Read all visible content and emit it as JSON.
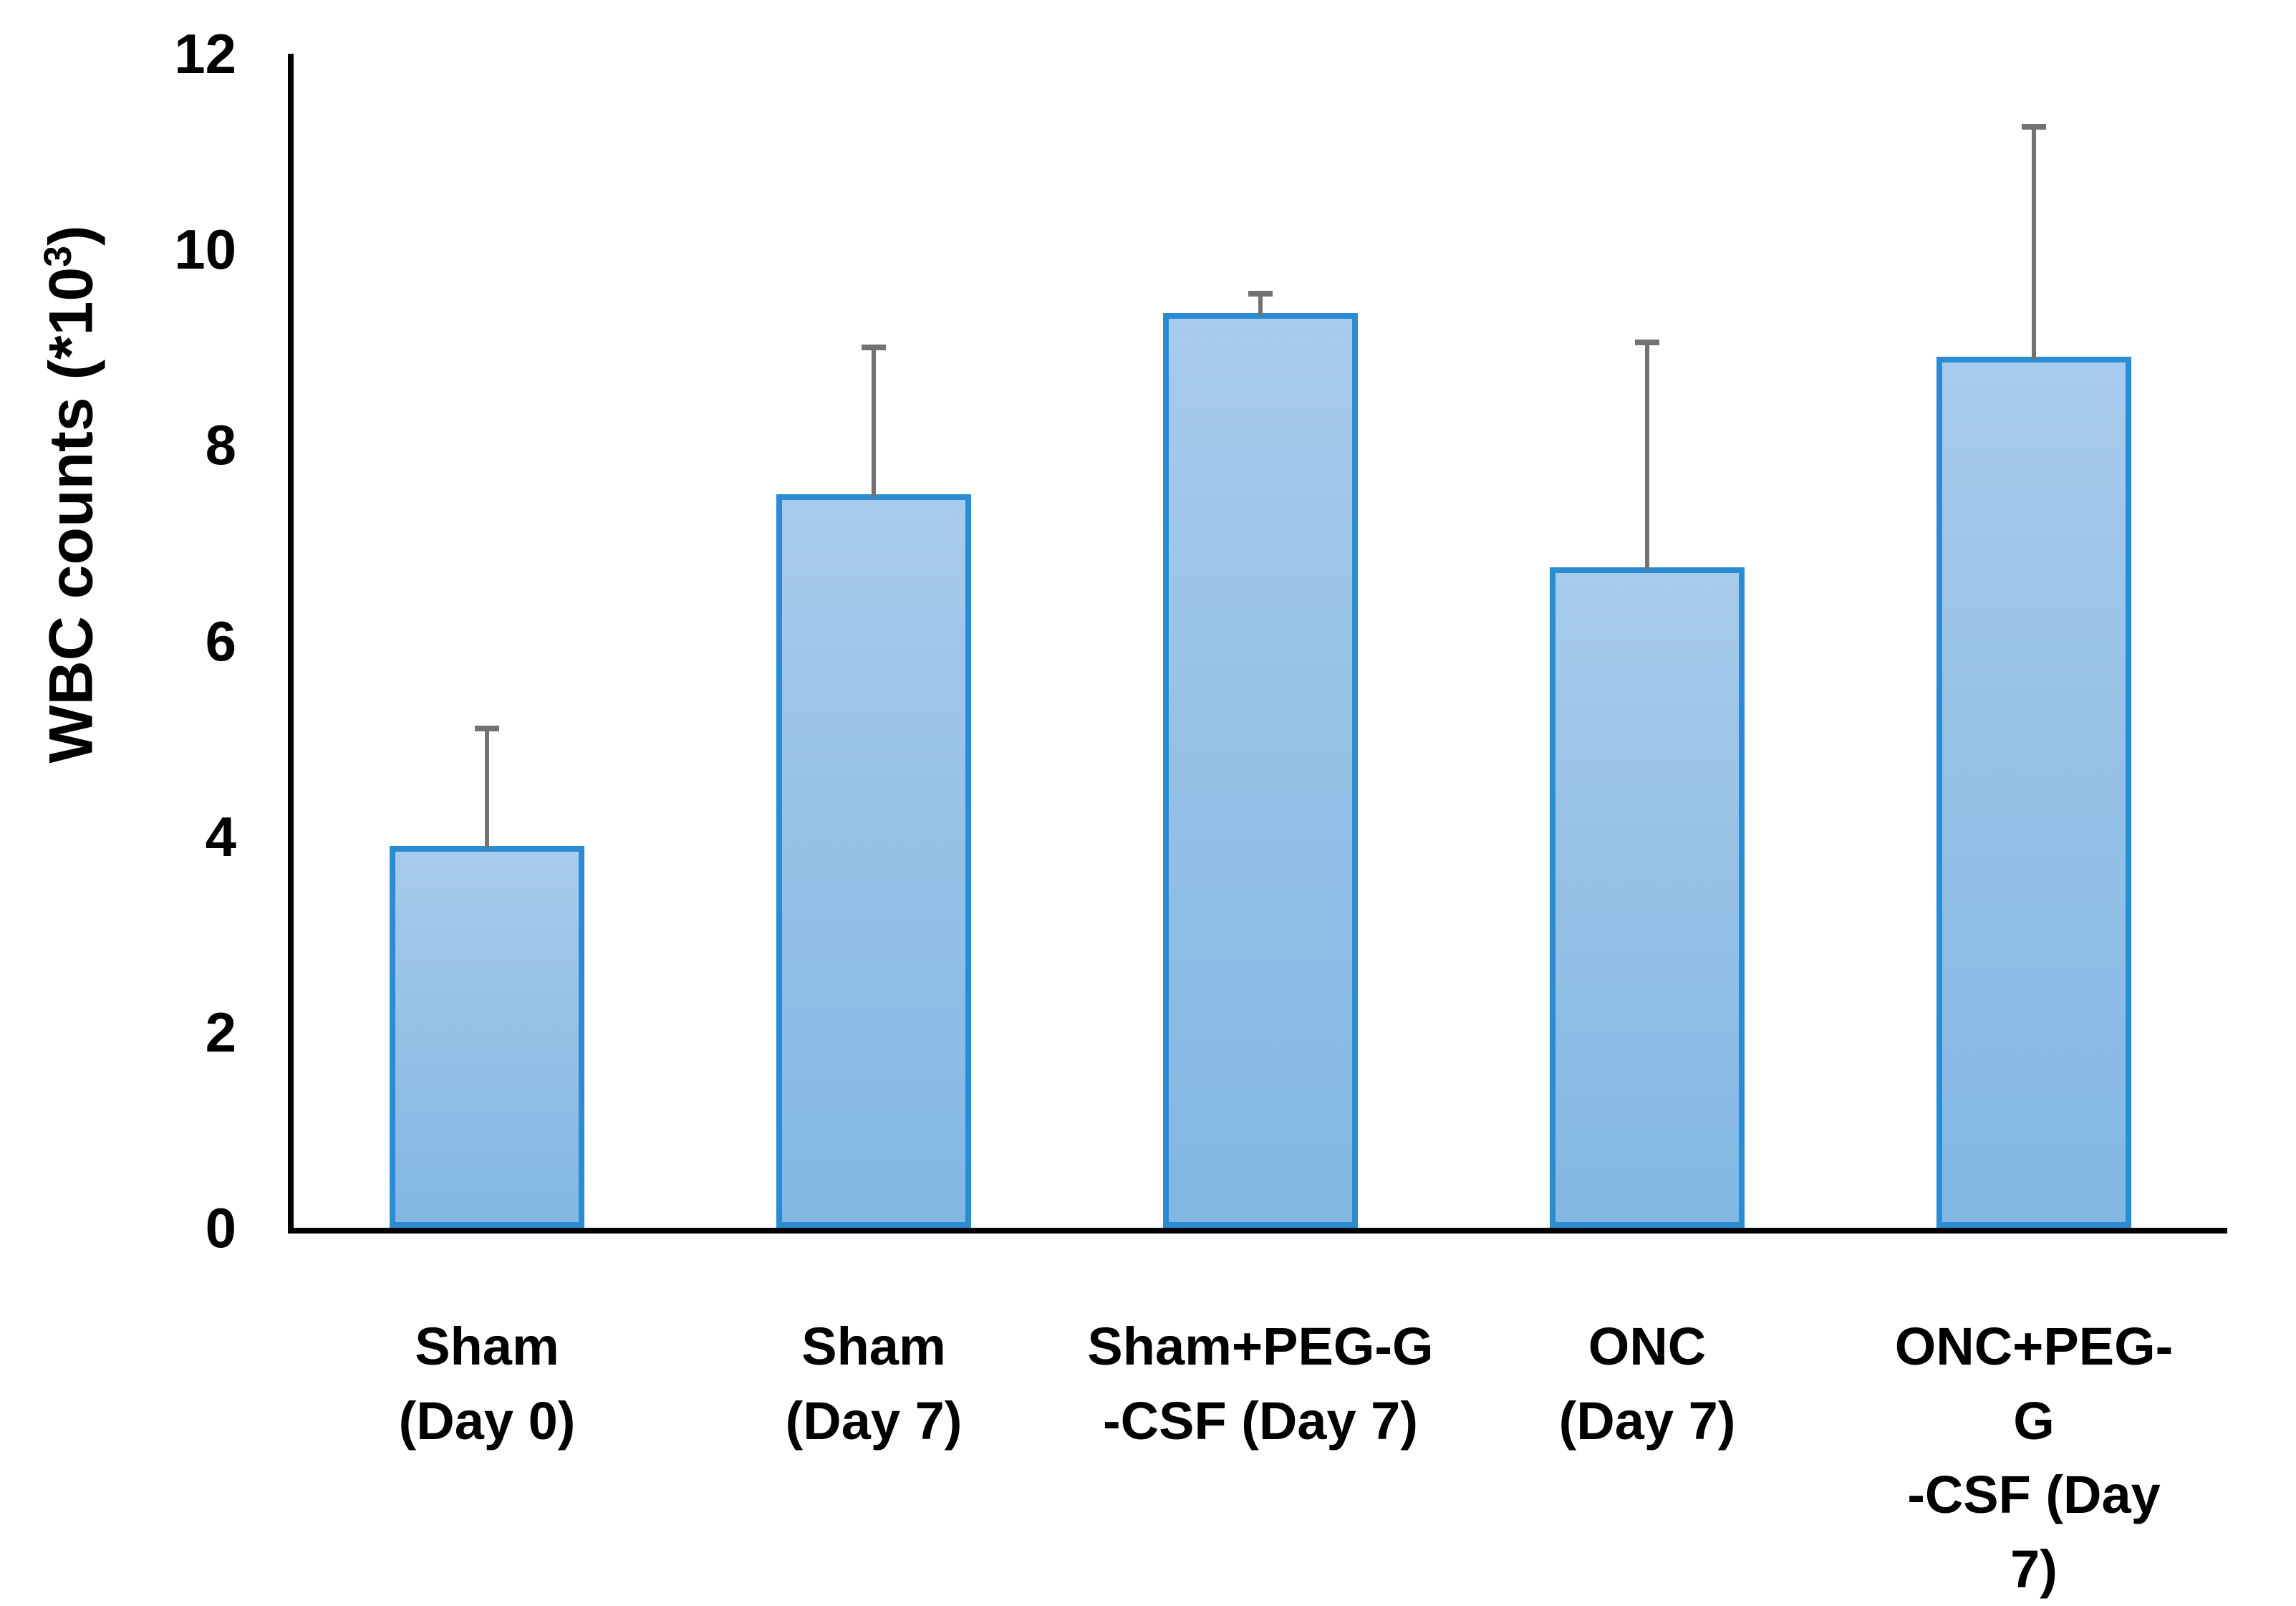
{
  "chart_data": {
    "type": "bar",
    "title": "",
    "xlabel": "",
    "ylabel": "WBC counts (*10³)",
    "ylabel_parts": {
      "prefix": "WBC counts (*10",
      "sup": "3",
      "suffix": ")"
    },
    "categories": [
      "Sham\n(Day 0)",
      "Sham\n(Day 7)",
      "Sham+PEG-G\n-CSF (Day 7)",
      "ONC\n(Day 7)",
      "ONC+PEG-G\n-CSF (Day 7)"
    ],
    "series": [
      {
        "name": "WBC counts",
        "values": [
          3.9,
          7.5,
          9.35,
          6.75,
          8.9
        ],
        "errors_plus": [
          1.2,
          1.5,
          0.2,
          2.3,
          2.35
        ]
      }
    ],
    "yticks": [
      0,
      2,
      4,
      6,
      8,
      10,
      12
    ],
    "ylim": [
      0,
      12
    ],
    "grid": false,
    "legend_position": "none",
    "colors": {
      "bar_fill_top": "#a7cbec",
      "bar_fill_bottom": "#82b7e4",
      "bar_border": "#2a8dd4",
      "error_bar": "#737373",
      "axis": "#000000",
      "text": "#000000",
      "background": "#ffffff"
    }
  }
}
